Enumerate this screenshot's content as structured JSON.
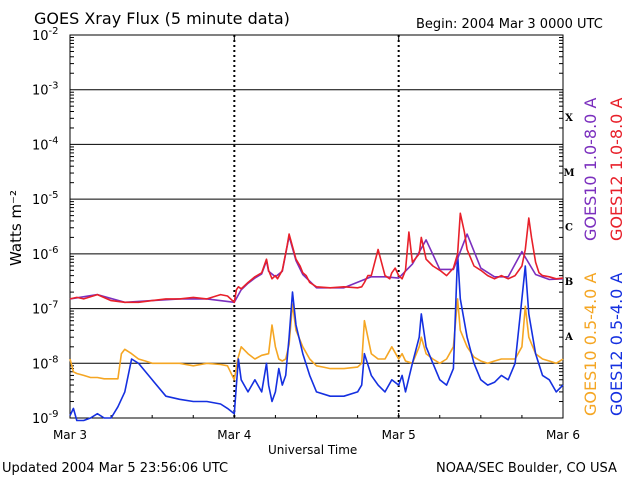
{
  "header": {
    "title": "GOES Xray Flux (5 minute data)",
    "begin": "Begin:  2004 Mar 3 0000 UTC"
  },
  "footer": {
    "updated": "Updated 2004 Mar  5 23:56:06 UTC",
    "credit": "NOAA/SEC Boulder, CO USA"
  },
  "colors": {
    "goes10_long": "#7b2fbe",
    "goes12_long": "#e8202a",
    "goes10_short": "#f5a623",
    "goes12_short": "#1530e0",
    "grid": "#000000"
  },
  "chart_data": {
    "type": "line",
    "title": "GOES Xray Flux (5 minute data)",
    "xlabel": "Universal Time",
    "ylabel": "Watts m⁻²",
    "yscale": "log",
    "ylim": [
      1e-09,
      0.01
    ],
    "xlim": [
      "2004-03-03 00:00",
      "2004-03-06 00:00"
    ],
    "x_tick_labels": [
      "Mar 3",
      "Mar 4",
      "Mar 5",
      "Mar 6"
    ],
    "y_tick_labels": [
      {
        "mantissa": "10",
        "exp": "-9"
      },
      {
        "mantissa": "10",
        "exp": "-8"
      },
      {
        "mantissa": "10",
        "exp": "-7"
      },
      {
        "mantissa": "10",
        "exp": "-6"
      },
      {
        "mantissa": "10",
        "exp": "-5"
      },
      {
        "mantissa": "10",
        "exp": "-4"
      },
      {
        "mantissa": "10",
        "exp": "-3"
      },
      {
        "mantissa": "10",
        "exp": "-2"
      }
    ],
    "flare_classes": [
      "X",
      "M",
      "C",
      "B",
      "A"
    ],
    "grid": true,
    "legend_position": "right",
    "series": [
      {
        "name": "GOES12 1.0-8.0 A",
        "color": "#e8202a",
        "x_hours": [
          0,
          1,
          2,
          4,
          6,
          8,
          10,
          12,
          14,
          16,
          18,
          20,
          22,
          23,
          24,
          24.3,
          24.6,
          25,
          26,
          27,
          28,
          28.7,
          29,
          29.5,
          30,
          30.3,
          31,
          31.7,
          32,
          33,
          33.6,
          34,
          34.5,
          35,
          36,
          38,
          40,
          42,
          42.6,
          43,
          43.5,
          44,
          45,
          46,
          46.7,
          47,
          47.5,
          48,
          48.5,
          49,
          49.5,
          50,
          51,
          51.3,
          52,
          53,
          54,
          55,
          56,
          56.6,
          57,
          57.6,
          58,
          59,
          60,
          61,
          62,
          63,
          64,
          65,
          66,
          66.5,
          67,
          67.4,
          68,
          68.5,
          69,
          70,
          71,
          72
        ],
        "y": [
          1.5e-07,
          1.6e-07,
          1.5e-07,
          1.8e-07,
          1.4e-07,
          1.3e-07,
          1.3e-07,
          1.4e-07,
          1.5e-07,
          1.5e-07,
          1.6e-07,
          1.5e-07,
          1.8e-07,
          1.7e-07,
          1.3e-07,
          2.2e-07,
          2.5e-07,
          2.3e-07,
          3e-07,
          3.8e-07,
          4.5e-07,
          8e-07,
          5e-07,
          3.5e-07,
          4e-07,
          3.5e-07,
          5e-07,
          1.4e-06,
          2.3e-06,
          8e-07,
          6e-07,
          4.5e-07,
          4e-07,
          3e-07,
          2.5e-07,
          2.4e-07,
          2.5e-07,
          2.4e-07,
          2.5e-07,
          3e-07,
          4e-07,
          4e-07,
          1.2e-06,
          4e-07,
          3.5e-07,
          4.5e-07,
          5.5e-07,
          4e-07,
          3.5e-07,
          5e-07,
          2.5e-06,
          7e-07,
          1e-06,
          2e-06,
          8e-07,
          6e-07,
          5e-07,
          4e-07,
          5.5e-07,
          1e-06,
          5.5e-06,
          2.5e-06,
          1.2e-06,
          6e-07,
          5e-07,
          4e-07,
          3.5e-07,
          4e-07,
          3.5e-07,
          4e-07,
          6e-07,
          1.2e-06,
          4.5e-06,
          2e-06,
          7e-07,
          4.5e-07,
          4e-07,
          3.8e-07,
          3.5e-07,
          3.6e-07
        ]
      },
      {
        "name": "GOES10 1.0-8.0 A",
        "color": "#7b2fbe",
        "x_hours": [
          0,
          4,
          8,
          12,
          16,
          20,
          24,
          25,
          26,
          27,
          28,
          28.7,
          29,
          30,
          31,
          32,
          33,
          34,
          36,
          40,
          44,
          46,
          48,
          50,
          52,
          54,
          56,
          58,
          60,
          62,
          64,
          66,
          68,
          70,
          72
        ],
        "y": [
          1.5e-07,
          1.8e-07,
          1.3e-07,
          1.4e-07,
          1.5e-07,
          1.5e-07,
          1.3e-07,
          2.2e-07,
          2.9e-07,
          3.6e-07,
          4.3e-07,
          7.5e-07,
          4.8e-07,
          3.8e-07,
          4.8e-07,
          2.1e-06,
          7.5e-07,
          4.2e-07,
          2.4e-07,
          2.4e-07,
          3.8e-07,
          3.8e-07,
          3.6e-07,
          6.5e-07,
          1.8e-06,
          5.2e-07,
          5.2e-07,
          2.3e-06,
          5.5e-07,
          3.8e-07,
          3.8e-07,
          1.1e-06,
          4.2e-07,
          3.4e-07,
          3.5e-07
        ]
      },
      {
        "name": "GOES10 0.5-4.0 A",
        "color": "#f5a623",
        "x_hours": [
          0,
          0.5,
          1,
          2,
          3,
          4,
          5,
          6,
          7,
          7.5,
          8,
          9,
          10,
          11,
          12,
          14,
          16,
          18,
          20,
          22,
          23,
          24,
          24.5,
          25,
          26,
          27,
          28,
          29,
          29.5,
          30,
          30.5,
          31,
          31.5,
          32,
          32.5,
          33,
          34,
          35,
          36,
          37,
          38,
          40,
          42,
          42.6,
          43,
          44,
          45,
          46,
          47,
          48,
          48.5,
          49,
          50,
          51,
          51.3,
          52,
          53,
          54,
          55,
          56,
          56.6,
          57,
          58,
          59,
          60,
          61,
          62,
          63,
          64,
          65,
          66,
          66.5,
          67,
          68,
          69,
          70,
          71,
          72
        ],
        "y": [
          1.2e-08,
          7e-09,
          6.5e-09,
          6e-09,
          5.5e-09,
          5.5e-09,
          5.2e-09,
          5.2e-09,
          5.2e-09,
          1.5e-08,
          1.8e-08,
          1.5e-08,
          1.2e-08,
          1.1e-08,
          1e-08,
          1e-08,
          1e-08,
          9e-09,
          1e-08,
          9.5e-09,
          9e-09,
          5e-09,
          1.2e-08,
          2e-08,
          1.5e-08,
          1.2e-08,
          1.4e-08,
          1.5e-08,
          5e-08,
          2e-08,
          1.2e-08,
          1.1e-08,
          1.2e-08,
          2.2e-08,
          1.2e-07,
          4e-08,
          2e-08,
          1.2e-08,
          9e-09,
          8.5e-09,
          8e-09,
          8e-09,
          8.5e-09,
          1e-08,
          6e-08,
          1.5e-08,
          1.2e-08,
          1.2e-08,
          2e-08,
          1.2e-08,
          1.5e-08,
          1.1e-08,
          1e-08,
          2e-08,
          3e-08,
          1.5e-08,
          1.2e-08,
          1e-08,
          1.2e-08,
          2e-08,
          1.5e-07,
          4e-08,
          2e-08,
          1.3e-08,
          1.1e-08,
          1e-08,
          1.1e-08,
          1.2e-08,
          1.2e-08,
          1.2e-08,
          2e-08,
          1.1e-07,
          3e-08,
          1.5e-08,
          1.2e-08,
          1.1e-08,
          1e-08,
          1.2e-08
        ]
      },
      {
        "name": "GOES12 0.5-4.0 A",
        "color": "#1530e0",
        "x_hours": [
          0,
          0.5,
          1,
          2,
          3,
          4,
          5,
          6,
          7,
          8,
          9,
          10,
          12,
          14,
          16,
          18,
          20,
          22,
          23,
          24,
          24.3,
          24.6,
          25,
          26,
          27,
          28,
          28.7,
          29,
          29.5,
          30,
          30.5,
          31,
          31.5,
          32,
          32.5,
          33,
          34,
          35,
          36,
          38,
          40,
          42,
          42.6,
          43,
          44,
          45,
          46,
          47,
          48,
          48.5,
          49,
          50,
          51,
          51.3,
          52,
          53,
          54,
          55,
          56,
          56.6,
          57,
          58,
          59,
          60,
          61,
          62,
          63,
          64,
          65,
          66,
          66.5,
          67,
          68,
          69,
          70,
          71,
          72
        ],
        "y": [
          1.1e-09,
          1.5e-09,
          9e-10,
          9e-10,
          1e-09,
          1.2e-09,
          1e-09,
          1e-09,
          1.6e-09,
          3e-09,
          1.2e-08,
          1e-08,
          5e-09,
          2.5e-09,
          2.2e-09,
          2e-09,
          2e-09,
          1.8e-09,
          1.5e-09,
          1.2e-09,
          4e-09,
          1.2e-08,
          5e-09,
          3e-09,
          5e-09,
          3e-09,
          1e-08,
          4e-09,
          2e-09,
          3e-09,
          8e-09,
          4e-09,
          6e-09,
          3e-08,
          2e-07,
          5e-08,
          1.5e-08,
          6e-09,
          3e-09,
          2.5e-09,
          2.5e-09,
          3e-09,
          4e-09,
          1.5e-08,
          6e-09,
          4e-09,
          3e-09,
          5e-09,
          4e-09,
          6e-09,
          3e-09,
          1e-08,
          3e-08,
          8e-08,
          2e-08,
          1e-08,
          5e-09,
          4e-09,
          8e-09,
          1e-06,
          1.5e-07,
          3e-08,
          1e-08,
          5e-09,
          4e-09,
          4.5e-09,
          6e-09,
          5e-09,
          1e-08,
          1.5e-07,
          6e-07,
          8e-08,
          1.5e-08,
          6e-09,
          5e-09,
          3e-09,
          4e-09
        ]
      }
    ]
  }
}
